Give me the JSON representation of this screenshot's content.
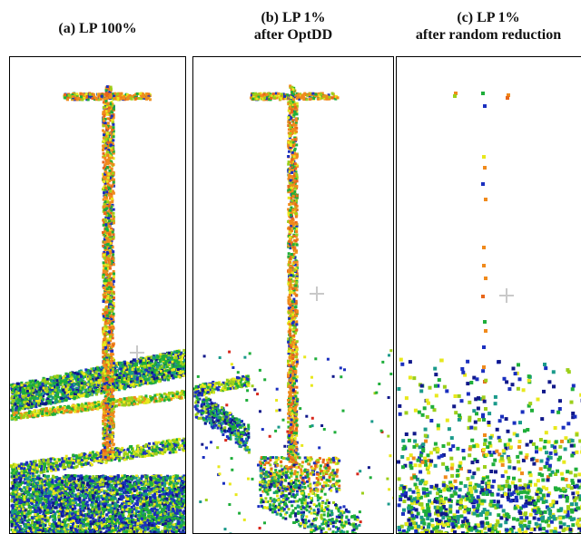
{
  "panels": [
    {
      "title_line1": "(a) LP 100%",
      "title_line2": ""
    },
    {
      "title_line1": "(b) LP 1%",
      "title_line2": "after OptDD"
    },
    {
      "title_line1": "(c) LP 1%",
      "title_line2": "after random reduction"
    }
  ],
  "point_colors": {
    "orange": "#f08a1c",
    "dark_orange": "#e8661a",
    "yellow": "#e8e81c",
    "lime": "#9ccf1a",
    "green": "#1fae3a",
    "teal": "#1a9a8a",
    "blue": "#1a2fbf",
    "navy": "#10188a",
    "red": "#d8281c"
  }
}
